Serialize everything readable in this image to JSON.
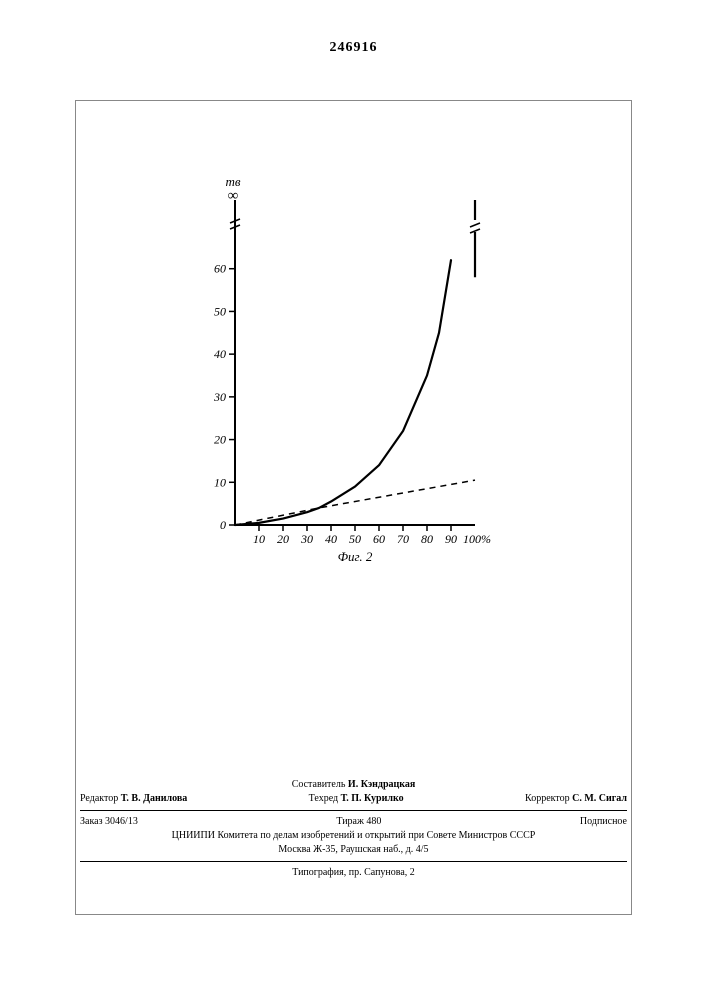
{
  "doc_number": "246916",
  "chart": {
    "type": "line",
    "y_axis_label": "mв",
    "y_infinity_label": "∞",
    "x_axis_suffix": "100%",
    "caption": "Фиг. 2",
    "x_ticks": [
      10,
      20,
      30,
      40,
      50,
      60,
      70,
      80,
      90
    ],
    "y_ticks": [
      0,
      10,
      20,
      30,
      40,
      50,
      60
    ],
    "xlim": [
      0,
      100
    ],
    "ylim": [
      0,
      70
    ],
    "y_break_at": 64,
    "axis_color": "#000000",
    "axis_width": 2.0,
    "tick_fontsize": 12,
    "label_fontsize": 13,
    "background_color": "#ffffff",
    "series_solid": {
      "points": [
        [
          0,
          0
        ],
        [
          10,
          0.5
        ],
        [
          20,
          1.5
        ],
        [
          30,
          3
        ],
        [
          35,
          4
        ],
        [
          40,
          5.5
        ],
        [
          50,
          9
        ],
        [
          60,
          14
        ],
        [
          70,
          22
        ],
        [
          80,
          35
        ],
        [
          85,
          45
        ],
        [
          90,
          62
        ]
      ],
      "terminal_vertical_at_x": 100,
      "terminal_from_y": 58,
      "terminal_to_y": 70,
      "color": "#000000",
      "line_width": 2.2,
      "dash": "none"
    },
    "series_dashed": {
      "points": [
        [
          0,
          0
        ],
        [
          35,
          4
        ],
        [
          100,
          10.5
        ]
      ],
      "color": "#000000",
      "line_width": 1.5,
      "dash": "6,5"
    }
  },
  "footer": {
    "compiler_label": "Составитель",
    "compiler_name": "И. Кэндрацкая",
    "editor_label": "Редактор",
    "editor_name": "Т. В. Данилова",
    "techred_label": "Техред",
    "techred_name": "Т. П. Курилко",
    "corrector_label": "Корректор",
    "corrector_name": "С. М. Сигал",
    "order_label": "Заказ",
    "order_value": "3046/13",
    "tiraz_label": "Тираж",
    "tiraz_value": "480",
    "subscription": "Подписное",
    "org_line1": "ЦНИИПИ Комитета по делам изобретений и открытий при Совете Министров СССР",
    "org_line2": "Москва Ж-35, Раушская наб., д. 4/5",
    "typography": "Типография, пр. Сапунова, 2"
  }
}
